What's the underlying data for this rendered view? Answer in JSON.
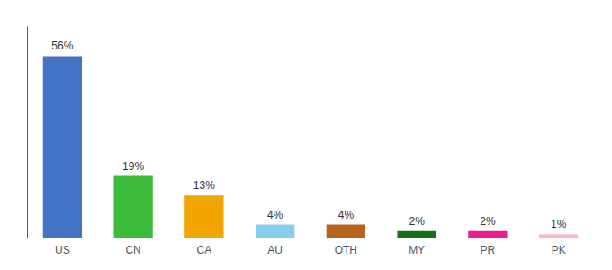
{
  "chart_data": {
    "type": "bar",
    "categories": [
      "US",
      "CN",
      "CA",
      "AU",
      "OTH",
      "MY",
      "PR",
      "PK"
    ],
    "values": [
      56,
      19,
      13,
      4,
      4,
      2,
      2,
      1
    ],
    "value_labels": [
      "56%",
      "19%",
      "13%",
      "4%",
      "4%",
      "2%",
      "2%",
      "1%"
    ],
    "colors": [
      "#4472c4",
      "#3dbb3d",
      "#f0a500",
      "#87ceeb",
      "#b5651d",
      "#1a6e1a",
      "#e91e8c",
      "#ffb6c1"
    ],
    "ylim": [
      0,
      65
    ],
    "grid": false,
    "data_labels": true,
    "tick_labels": "x"
  }
}
